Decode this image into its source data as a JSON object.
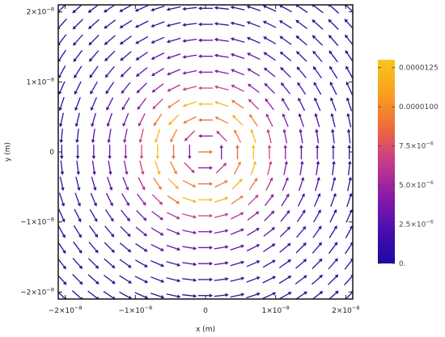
{
  "chart_data": {
    "type": "vector_field",
    "xlabel": "x (m)",
    "ylabel": "y (m)",
    "xlim": [
      -2.1e-08,
      2.1e-08
    ],
    "ylim": [
      -2.1e-08,
      2.1e-08
    ],
    "x_ticks": [
      {
        "value": -2e-08,
        "mant": "−2",
        "exp": "−8"
      },
      {
        "value": -1e-08,
        "mant": "−1",
        "exp": "−8"
      },
      {
        "value": 0,
        "mant": "0",
        "exp": ""
      },
      {
        "value": 1e-08,
        "mant": "1",
        "exp": "−8"
      },
      {
        "value": 2e-08,
        "mant": "2",
        "exp": "−8"
      }
    ],
    "y_ticks": [
      {
        "value": 2e-08,
        "mant": "2",
        "exp": "−8"
      },
      {
        "value": 1e-08,
        "mant": "1",
        "exp": "−8"
      },
      {
        "value": 0,
        "mant": "0",
        "exp": ""
      },
      {
        "value": -1e-08,
        "mant": "−1",
        "exp": "−8"
      },
      {
        "value": -2e-08,
        "mant": "−2",
        "exp": "−8"
      }
    ],
    "field": {
      "grid_count": 19,
      "extent": 2.05e-08,
      "rotation": "counterclockwise",
      "core_radius": 7e-09,
      "max_magnitude": 1.3e-05
    },
    "colorbar": {
      "min": 0,
      "max": 1.3e-05,
      "stops": [
        "#1a0a9e",
        "#4a0eb0",
        "#8a1ca8",
        "#c83a8a",
        "#f06a3a",
        "#f8a020",
        "#f9c51a"
      ],
      "ticks": [
        {
          "value": 1.25e-05,
          "label": "0.0000125",
          "exp": ""
        },
        {
          "value": 1e-05,
          "label": "0.0000100",
          "exp": ""
        },
        {
          "value": 7.5e-06,
          "label": "7.5×10",
          "exp": "−6"
        },
        {
          "value": 5e-06,
          "label": "5.0×10",
          "exp": "−6"
        },
        {
          "value": 2.5e-06,
          "label": "2.5×10",
          "exp": "−6"
        },
        {
          "value": 0,
          "label": "0.",
          "exp": ""
        }
      ]
    },
    "grid": false,
    "legend": "colorbar-right"
  }
}
